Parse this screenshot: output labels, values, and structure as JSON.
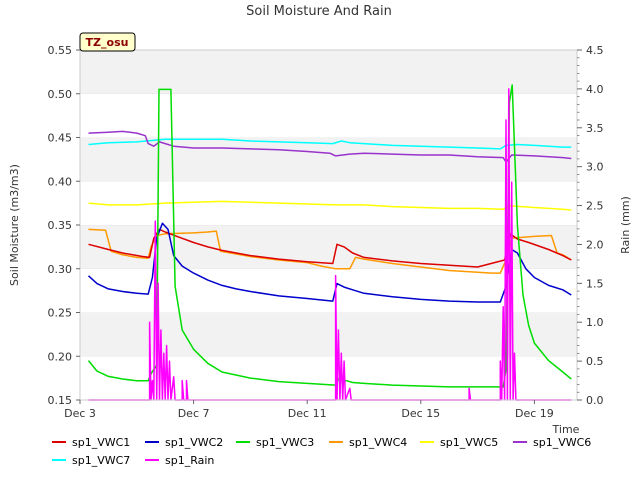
{
  "chart_data": {
    "type": "line",
    "title": "Soil Moisture And Rain",
    "badge": "TZ_osu",
    "xlabel": "Time",
    "ylabel": "Soil Moisture (m3/m3)",
    "ylabel_right": "Rain (mm)",
    "xlim": [
      0,
      17.5
    ],
    "ylim": [
      0.15,
      0.55
    ],
    "ylim_right": [
      0,
      4.5
    ],
    "x_units": "days since Dec 3",
    "x_ticks": [
      {
        "x": 0,
        "label": "Dec 3"
      },
      {
        "x": 4,
        "label": "Dec 7"
      },
      {
        "x": 8,
        "label": "Dec 11"
      },
      {
        "x": 12,
        "label": "Dec 15"
      },
      {
        "x": 16,
        "label": "Dec 19"
      }
    ],
    "y_ticks": [
      "0.15",
      "0.20",
      "0.25",
      "0.30",
      "0.35",
      "0.40",
      "0.45",
      "0.50",
      "0.55"
    ],
    "y_ticks_right": [
      "0.0",
      "0.5",
      "1.0",
      "1.5",
      "2.0",
      "2.5",
      "3.0",
      "3.5",
      "4.0",
      "4.5"
    ],
    "grid": "horizontal bands",
    "legend_position": "bottom",
    "series": [
      {
        "name": "sp1_VWC1",
        "color": "#dd0000",
        "axis": "left",
        "points": [
          [
            0.3,
            0.328
          ],
          [
            1,
            0.322
          ],
          [
            1.5,
            0.318
          ],
          [
            2.2,
            0.314
          ],
          [
            2.45,
            0.313
          ],
          [
            2.6,
            0.335
          ],
          [
            2.8,
            0.345
          ],
          [
            3,
            0.342
          ],
          [
            3.5,
            0.336
          ],
          [
            4,
            0.33
          ],
          [
            4.5,
            0.325
          ],
          [
            5,
            0.321
          ],
          [
            6,
            0.315
          ],
          [
            7,
            0.311
          ],
          [
            8,
            0.308
          ],
          [
            8.9,
            0.306
          ],
          [
            9.05,
            0.328
          ],
          [
            9.3,
            0.325
          ],
          [
            9.6,
            0.318
          ],
          [
            10,
            0.313
          ],
          [
            11,
            0.309
          ],
          [
            12,
            0.306
          ],
          [
            13,
            0.304
          ],
          [
            14,
            0.302
          ],
          [
            14.95,
            0.31
          ],
          [
            15.15,
            0.34
          ],
          [
            15.4,
            0.334
          ],
          [
            15.8,
            0.33
          ],
          [
            16.5,
            0.322
          ],
          [
            17,
            0.315
          ],
          [
            17.3,
            0.31
          ]
        ]
      },
      {
        "name": "sp1_VWC2",
        "color": "#0000cc",
        "axis": "left",
        "points": [
          [
            0.3,
            0.292
          ],
          [
            0.6,
            0.283
          ],
          [
            1,
            0.277
          ],
          [
            1.5,
            0.274
          ],
          [
            2,
            0.272
          ],
          [
            2.4,
            0.271
          ],
          [
            2.55,
            0.29
          ],
          [
            2.7,
            0.335
          ],
          [
            2.9,
            0.352
          ],
          [
            3.1,
            0.345
          ],
          [
            3.3,
            0.315
          ],
          [
            3.6,
            0.303
          ],
          [
            4,
            0.295
          ],
          [
            4.5,
            0.287
          ],
          [
            5,
            0.281
          ],
          [
            5.5,
            0.277
          ],
          [
            6,
            0.274
          ],
          [
            7,
            0.269
          ],
          [
            8,
            0.266
          ],
          [
            8.9,
            0.263
          ],
          [
            9.05,
            0.283
          ],
          [
            9.3,
            0.279
          ],
          [
            9.6,
            0.276
          ],
          [
            10,
            0.272
          ],
          [
            11,
            0.268
          ],
          [
            12,
            0.265
          ],
          [
            13,
            0.263
          ],
          [
            14,
            0.262
          ],
          [
            14.8,
            0.262
          ],
          [
            15,
            0.28
          ],
          [
            15.2,
            0.322
          ],
          [
            15.4,
            0.318
          ],
          [
            15.7,
            0.3
          ],
          [
            16,
            0.29
          ],
          [
            16.5,
            0.281
          ],
          [
            17,
            0.276
          ],
          [
            17.3,
            0.27
          ]
        ]
      },
      {
        "name": "sp1_VWC3",
        "color": "#00dd00",
        "axis": "left",
        "points": [
          [
            0.3,
            0.195
          ],
          [
            0.6,
            0.183
          ],
          [
            1,
            0.177
          ],
          [
            1.5,
            0.174
          ],
          [
            2,
            0.172
          ],
          [
            2.4,
            0.172
          ],
          [
            2.5,
            0.18
          ],
          [
            2.7,
            0.19
          ],
          [
            2.78,
            0.505
          ],
          [
            3.2,
            0.505
          ],
          [
            3.35,
            0.28
          ],
          [
            3.6,
            0.23
          ],
          [
            4,
            0.208
          ],
          [
            4.5,
            0.192
          ],
          [
            5,
            0.182
          ],
          [
            6,
            0.175
          ],
          [
            7,
            0.171
          ],
          [
            8,
            0.169
          ],
          [
            9,
            0.167
          ],
          [
            9.1,
            0.174
          ],
          [
            9.4,
            0.172
          ],
          [
            9.6,
            0.17
          ],
          [
            10,
            0.169
          ],
          [
            11,
            0.167
          ],
          [
            12,
            0.166
          ],
          [
            13,
            0.165
          ],
          [
            14,
            0.165
          ],
          [
            14.9,
            0.165
          ],
          [
            15,
            0.185
          ],
          [
            15.12,
            0.49
          ],
          [
            15.22,
            0.51
          ],
          [
            15.4,
            0.35
          ],
          [
            15.6,
            0.27
          ],
          [
            15.8,
            0.235
          ],
          [
            16,
            0.215
          ],
          [
            16.5,
            0.195
          ],
          [
            17,
            0.182
          ],
          [
            17.3,
            0.174
          ]
        ]
      },
      {
        "name": "sp1_VWC4",
        "color": "#ff9900",
        "axis": "left",
        "points": [
          [
            0.3,
            0.345
          ],
          [
            0.9,
            0.344
          ],
          [
            1.1,
            0.32
          ],
          [
            1.5,
            0.316
          ],
          [
            2,
            0.313
          ],
          [
            2.4,
            0.312
          ],
          [
            2.5,
            0.325
          ],
          [
            2.7,
            0.338
          ],
          [
            3,
            0.34
          ],
          [
            4,
            0.341
          ],
          [
            4.5,
            0.342
          ],
          [
            4.8,
            0.343
          ],
          [
            4.95,
            0.32
          ],
          [
            5.3,
            0.318
          ],
          [
            6,
            0.314
          ],
          [
            7,
            0.31
          ],
          [
            8,
            0.307
          ],
          [
            8.5,
            0.303
          ],
          [
            9,
            0.3
          ],
          [
            9.5,
            0.3
          ],
          [
            9.7,
            0.313
          ],
          [
            10,
            0.311
          ],
          [
            11,
            0.306
          ],
          [
            12,
            0.302
          ],
          [
            13,
            0.298
          ],
          [
            14,
            0.296
          ],
          [
            14.5,
            0.295
          ],
          [
            14.8,
            0.295
          ],
          [
            15,
            0.31
          ],
          [
            15.2,
            0.335
          ],
          [
            16,
            0.337
          ],
          [
            16.6,
            0.338
          ],
          [
            16.8,
            0.318
          ],
          [
            17,
            0.316
          ],
          [
            17.3,
            0.31
          ]
        ]
      },
      {
        "name": "sp1_VWC5",
        "color": "#ffff00",
        "axis": "left",
        "points": [
          [
            0.3,
            0.375
          ],
          [
            1,
            0.373
          ],
          [
            2,
            0.373
          ],
          [
            3,
            0.375
          ],
          [
            4,
            0.376
          ],
          [
            5,
            0.377
          ],
          [
            6,
            0.376
          ],
          [
            7,
            0.375
          ],
          [
            8,
            0.374
          ],
          [
            9,
            0.373
          ],
          [
            10,
            0.373
          ],
          [
            11,
            0.371
          ],
          [
            12,
            0.37
          ],
          [
            13,
            0.369
          ],
          [
            14,
            0.369
          ],
          [
            14.9,
            0.368
          ],
          [
            15.1,
            0.372
          ],
          [
            16,
            0.37
          ],
          [
            17,
            0.368
          ],
          [
            17.3,
            0.367
          ]
        ]
      },
      {
        "name": "sp1_VWC6",
        "color": "#9933cc",
        "axis": "left",
        "points": [
          [
            0.3,
            0.455
          ],
          [
            1,
            0.456
          ],
          [
            1.5,
            0.457
          ],
          [
            2,
            0.455
          ],
          [
            2.3,
            0.452
          ],
          [
            2.4,
            0.443
          ],
          [
            2.6,
            0.44
          ],
          [
            2.8,
            0.445
          ],
          [
            3,
            0.443
          ],
          [
            3.3,
            0.44
          ],
          [
            4,
            0.438
          ],
          [
            5,
            0.438
          ],
          [
            6,
            0.437
          ],
          [
            7,
            0.436
          ],
          [
            8,
            0.434
          ],
          [
            8.8,
            0.432
          ],
          [
            9,
            0.429
          ],
          [
            9.5,
            0.431
          ],
          [
            10,
            0.432
          ],
          [
            11,
            0.431
          ],
          [
            12,
            0.43
          ],
          [
            13,
            0.43
          ],
          [
            14,
            0.428
          ],
          [
            14.9,
            0.427
          ],
          [
            15,
            0.422
          ],
          [
            15.2,
            0.43
          ],
          [
            16,
            0.429
          ],
          [
            17,
            0.427
          ],
          [
            17.3,
            0.426
          ]
        ]
      },
      {
        "name": "sp1_VWC7",
        "color": "#00ffff",
        "axis": "left",
        "points": [
          [
            0.3,
            0.442
          ],
          [
            1,
            0.444
          ],
          [
            2,
            0.445
          ],
          [
            3,
            0.448
          ],
          [
            4,
            0.448
          ],
          [
            5,
            0.448
          ],
          [
            6,
            0.446
          ],
          [
            7,
            0.445
          ],
          [
            8,
            0.444
          ],
          [
            8.9,
            0.443
          ],
          [
            9.2,
            0.446
          ],
          [
            9.5,
            0.444
          ],
          [
            10,
            0.443
          ],
          [
            11,
            0.441
          ],
          [
            12,
            0.44
          ],
          [
            13,
            0.439
          ],
          [
            14,
            0.438
          ],
          [
            14.8,
            0.437
          ],
          [
            15,
            0.441
          ],
          [
            15.4,
            0.442
          ],
          [
            16,
            0.441
          ],
          [
            17,
            0.439
          ],
          [
            17.3,
            0.439
          ]
        ]
      },
      {
        "name": "sp1_Rain",
        "color": "#ff00ff",
        "axis": "right",
        "points": [
          [
            0.3,
            0
          ],
          [
            2.45,
            0
          ],
          [
            2.45,
            1.0
          ],
          [
            2.5,
            0
          ],
          [
            2.55,
            0.25
          ],
          [
            2.6,
            0
          ],
          [
            2.65,
            2.3
          ],
          [
            2.7,
            0
          ],
          [
            2.75,
            1.5
          ],
          [
            2.8,
            0
          ],
          [
            2.85,
            0.9
          ],
          [
            2.9,
            0
          ],
          [
            2.95,
            0.6
          ],
          [
            3.0,
            0
          ],
          [
            3.05,
            0.7
          ],
          [
            3.1,
            0
          ],
          [
            3.15,
            0.5
          ],
          [
            3.2,
            0
          ],
          [
            3.3,
            0.3
          ],
          [
            3.35,
            0
          ],
          [
            3.6,
            0
          ],
          [
            3.6,
            0.25
          ],
          [
            3.65,
            0
          ],
          [
            3.75,
            0
          ],
          [
            3.75,
            0.25
          ],
          [
            3.8,
            0
          ],
          [
            9.0,
            0
          ],
          [
            9.0,
            1.6
          ],
          [
            9.05,
            0
          ],
          [
            9.1,
            0.9
          ],
          [
            9.15,
            0
          ],
          [
            9.2,
            0.6
          ],
          [
            9.25,
            0
          ],
          [
            9.3,
            0.5
          ],
          [
            9.35,
            0
          ],
          [
            9.5,
            0.15
          ],
          [
            9.55,
            0
          ],
          [
            13.7,
            0
          ],
          [
            13.7,
            0.15
          ],
          [
            13.75,
            0
          ],
          [
            14.8,
            0
          ],
          [
            14.8,
            0.5
          ],
          [
            14.85,
            0
          ],
          [
            14.9,
            1.2
          ],
          [
            14.95,
            0
          ],
          [
            15.0,
            3.6
          ],
          [
            15.05,
            0
          ],
          [
            15.1,
            4.0
          ],
          [
            15.15,
            0
          ],
          [
            15.2,
            2.8
          ],
          [
            15.25,
            0
          ],
          [
            15.3,
            0.6
          ],
          [
            15.35,
            0
          ],
          [
            17.3,
            0
          ]
        ]
      }
    ]
  }
}
